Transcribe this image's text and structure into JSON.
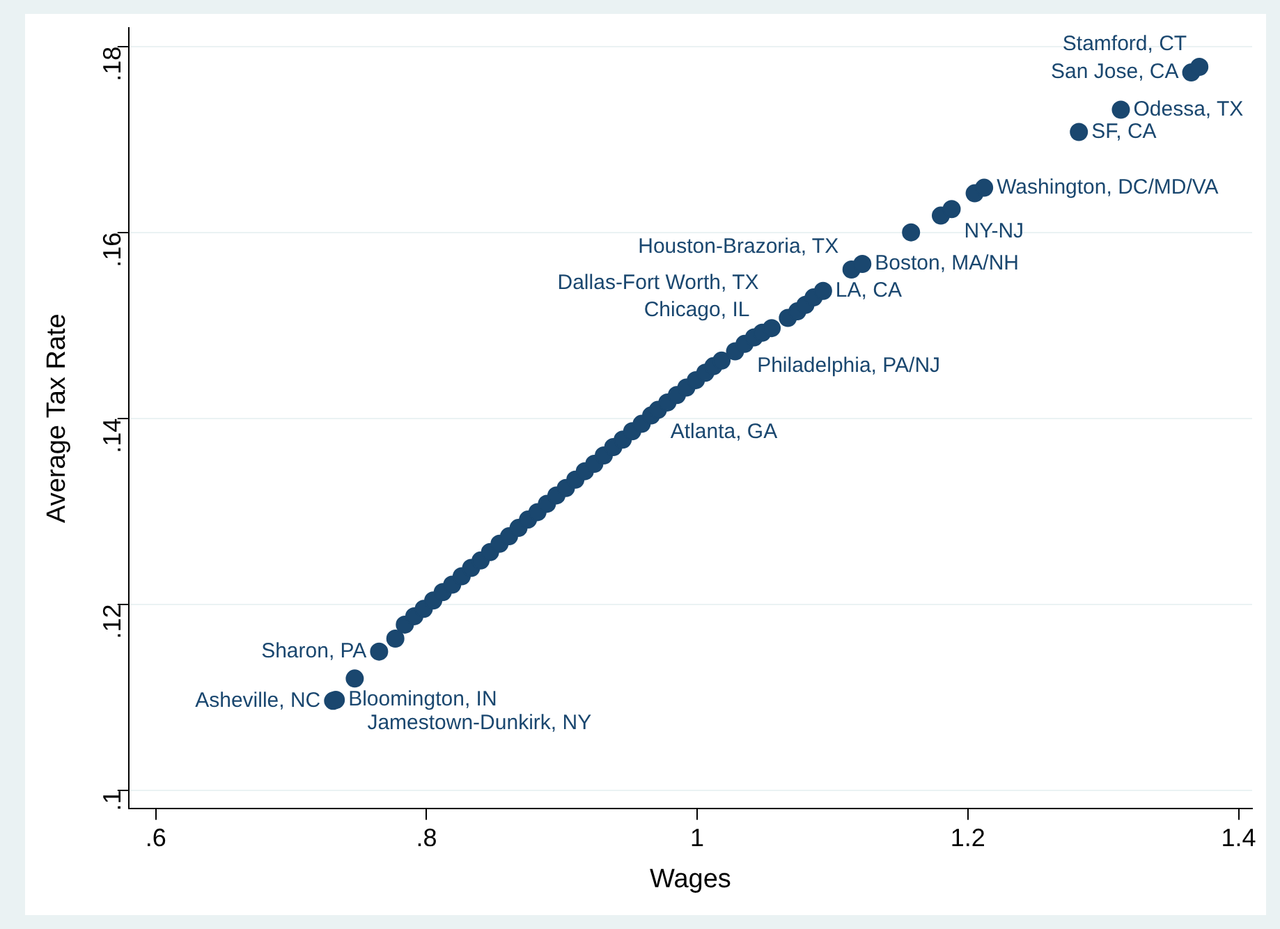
{
  "chart_data": {
    "type": "scatter",
    "xlabel": "Wages",
    "ylabel": "Average Tax Rate",
    "color": "#1a476f",
    "marker": "circle",
    "grid": "y",
    "legend": false,
    "xlim": [
      0.58,
      1.41
    ],
    "ylim": [
      0.098,
      0.182
    ],
    "xticks": [
      {
        "value": 0.6,
        "label": ".6"
      },
      {
        "value": 0.8,
        "label": ".8"
      },
      {
        "value": 1,
        "label": "1"
      },
      {
        "value": 1.2,
        "label": "1.2"
      },
      {
        "value": 1.4,
        "label": "1.4"
      }
    ],
    "yticks": [
      {
        "value": 0.1,
        "label": ".1"
      },
      {
        "value": 0.12,
        "label": ".12"
      },
      {
        "value": 0.14,
        "label": ".14"
      },
      {
        "value": 0.16,
        "label": ".16"
      },
      {
        "value": 0.18,
        "label": ".18"
      }
    ],
    "x": [
      0.731,
      0.733,
      0.747,
      0.765,
      0.777,
      0.784,
      0.791,
      0.798,
      0.805,
      0.812,
      0.819,
      0.826,
      0.833,
      0.84,
      0.847,
      0.854,
      0.861,
      0.868,
      0.875,
      0.882,
      0.889,
      0.896,
      0.903,
      0.91,
      0.917,
      0.924,
      0.931,
      0.938,
      0.945,
      0.952,
      0.959,
      0.966,
      0.971,
      0.978,
      0.985,
      0.992,
      0.999,
      1.006,
      1.012,
      1.018,
      1.028,
      1.035,
      1.042,
      1.048,
      1.055,
      1.067,
      1.074,
      1.08,
      1.086,
      1.093,
      1.114,
      1.122,
      1.158,
      1.18,
      1.188,
      1.205,
      1.212,
      1.282,
      1.313,
      1.365,
      1.371
    ],
    "values": [
      0.1096,
      0.1097,
      0.112,
      0.1149,
      0.1163,
      0.1178,
      0.1187,
      0.1195,
      0.1204,
      0.1213,
      0.1221,
      0.123,
      0.1239,
      0.1247,
      0.1256,
      0.1265,
      0.1273,
      0.1282,
      0.1291,
      0.1299,
      0.1308,
      0.1317,
      0.1325,
      0.1334,
      0.1343,
      0.1351,
      0.136,
      0.1369,
      0.1377,
      0.1386,
      0.1394,
      0.1403,
      0.1409,
      0.1417,
      0.1425,
      0.1433,
      0.1441,
      0.1449,
      0.1456,
      0.1462,
      0.1472,
      0.148,
      0.1487,
      0.1492,
      0.1497,
      0.1508,
      0.1515,
      0.1522,
      0.153,
      0.1537,
      0.156,
      0.1566,
      0.16,
      0.1618,
      0.1625,
      0.1642,
      0.1648,
      0.1708,
      0.1732,
      0.1772,
      0.1778
    ],
    "value_labels": [
      "Asheville, NC",
      "Bloomington, IN",
      "Jamestown-Dunkirk, NY",
      "Sharon, PA",
      null,
      null,
      null,
      null,
      null,
      null,
      null,
      null,
      null,
      null,
      null,
      null,
      null,
      null,
      null,
      null,
      null,
      null,
      null,
      null,
      null,
      null,
      null,
      null,
      null,
      null,
      null,
      null,
      "Atlanta, GA",
      null,
      null,
      null,
      null,
      null,
      null,
      null,
      null,
      "Philadelphia, PA/NJ",
      null,
      "Chicago, IL",
      "Dallas-Fort Worth, TX",
      null,
      null,
      null,
      null,
      "LA, CA",
      "Houston-Brazoria, TX",
      "Boston, MA/NH",
      null,
      null,
      "NY-NJ",
      null,
      "Washington, DC/MD/VA",
      "SF, CA",
      "Odessa, TX",
      "San Jose, CA",
      "Stamford, CT"
    ]
  }
}
